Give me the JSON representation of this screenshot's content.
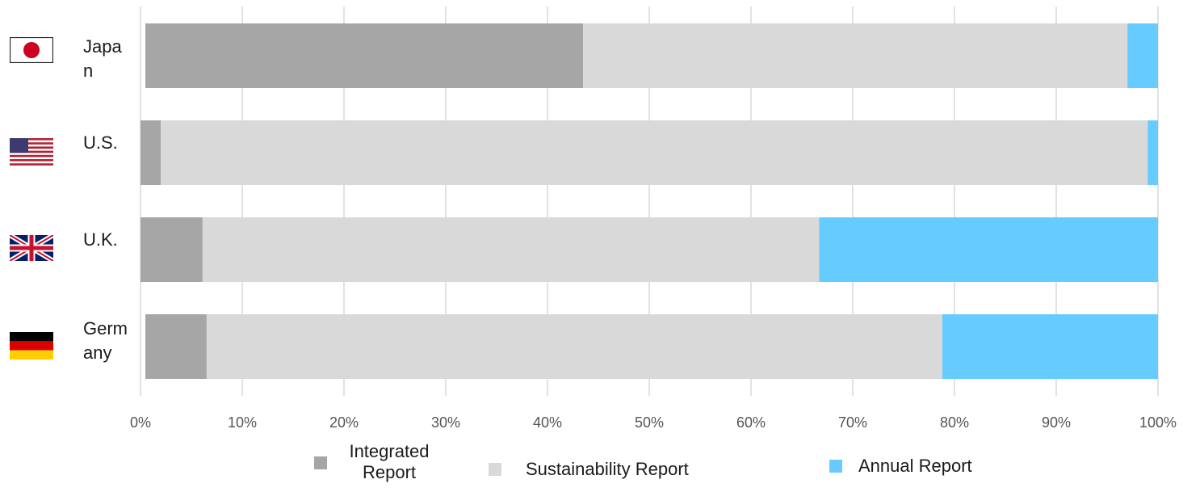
{
  "chart_data": {
    "type": "bar",
    "orientation": "horizontal",
    "stacked": "percent",
    "categories": [
      "Japan",
      "U.S.",
      "U.K.",
      "Germany"
    ],
    "series": [
      {
        "name": "Integrated Report",
        "color": "#a6a6a6",
        "values": [
          43.5,
          2.0,
          6.1,
          6.5
        ]
      },
      {
        "name": "Sustainability Report",
        "color": "#d9d9d9",
        "values": [
          53.5,
          97.0,
          60.6,
          72.3
        ]
      },
      {
        "name": "Annual Report",
        "color": "#66ccff",
        "values": [
          3.0,
          1.0,
          33.3,
          21.2
        ]
      }
    ],
    "x_ticks": [
      "0%",
      "10%",
      "20%",
      "30%",
      "40%",
      "50%",
      "60%",
      "70%",
      "80%",
      "90%",
      "100%"
    ],
    "xlim": [
      0,
      100
    ],
    "grid": "vertical",
    "legend_position": "bottom",
    "category_icons": [
      "japan-flag-icon",
      "us-flag-icon",
      "uk-flag-icon",
      "germany-flag-icon"
    ]
  }
}
